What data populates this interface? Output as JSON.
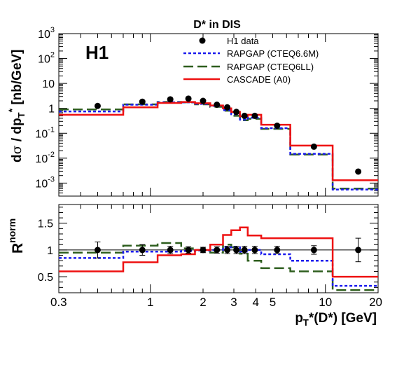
{
  "chart_data": [
    {
      "type": "histogram",
      "title": "D* in DIS",
      "experiment_label": "H1",
      "xscale": "log",
      "xlim": [
        0.3,
        20
      ],
      "yscale": "log",
      "ylim": [
        0.0003,
        1000
      ],
      "ylabel": {
        "prefix": "d",
        "sigma": "σ",
        "mid": " / dp",
        "sub": "T",
        "sup": "*",
        "unit": " [nb/GeV]"
      },
      "y_ticks": [
        {
          "value": 0.001,
          "base": "10",
          "exp": "-3"
        },
        {
          "value": 0.01,
          "base": "10",
          "exp": "-2"
        },
        {
          "value": 0.1,
          "base": "10",
          "exp": "-1"
        },
        {
          "value": 1,
          "base": "1",
          "exp": ""
        },
        {
          "value": 10,
          "base": "10",
          "exp": ""
        },
        {
          "value": 100,
          "base": "10",
          "exp": "2"
        },
        {
          "value": 1000,
          "base": "10",
          "exp": "3"
        }
      ],
      "legend": {
        "placement": "top-right",
        "entries": [
          {
            "label": "H1 data",
            "style": "marker",
            "color": "#000000"
          },
          {
            "label": "RAPGAP (CTEQ6.6M)",
            "style": "dotted",
            "color": "#1a1aee"
          },
          {
            "label": "RAPGAP (CTEQ6LL)",
            "style": "dashed",
            "color": "#2e5e1e"
          },
          {
            "label": "CASCADE (A0)",
            "style": "solid",
            "color": "#ee1111"
          }
        ]
      },
      "bin_edges": [
        0.3,
        0.7,
        1.1,
        1.5,
        1.8,
        2.2,
        2.6,
        2.9,
        3.25,
        3.6,
        4.3,
        6.3,
        11,
        20
      ],
      "data_points": [
        {
          "x": 0.5,
          "y": 1.25
        },
        {
          "x": 0.9,
          "y": 1.85
        },
        {
          "x": 1.3,
          "y": 2.3
        },
        {
          "x": 1.65,
          "y": 2.45
        },
        {
          "x": 2.0,
          "y": 2.0
        },
        {
          "x": 2.4,
          "y": 1.4
        },
        {
          "x": 2.75,
          "y": 1.1
        },
        {
          "x": 3.1,
          "y": 0.72
        },
        {
          "x": 3.45,
          "y": 0.5
        },
        {
          "x": 3.95,
          "y": 0.5
        },
        {
          "x": 5.3,
          "y": 0.2
        },
        {
          "x": 8.6,
          "y": 0.029
        },
        {
          "x": 15.4,
          "y": 0.0029
        }
      ],
      "series": [
        {
          "name": "RAPGAP (CTEQ6.6M)",
          "values": [
            0.75,
            1.4,
            1.75,
            1.75,
            1.5,
            1.25,
            0.85,
            0.58,
            0.35,
            0.42,
            0.16,
            0.015,
            0.00055
          ]
        },
        {
          "name": "RAPGAP (CTEQ6LL)",
          "values": [
            0.9,
            1.45,
            1.8,
            1.75,
            1.45,
            1.15,
            0.8,
            0.5,
            0.33,
            0.38,
            0.15,
            0.014,
            0.0006
          ]
        },
        {
          "name": "CASCADE (A0)",
          "values": [
            0.55,
            1.1,
            1.65,
            1.8,
            1.6,
            1.3,
            1.0,
            0.72,
            0.48,
            0.55,
            0.22,
            0.032,
            0.0013
          ]
        }
      ]
    },
    {
      "type": "histogram",
      "ylabel": {
        "base": "R",
        "sup": "norm"
      },
      "xlabel": {
        "p": "p",
        "sub": "T",
        "rest": "*(D*) [GeV]"
      },
      "xscale": "log",
      "xlim": [
        0.3,
        20
      ],
      "ylim": [
        0.2,
        1.85
      ],
      "x_ticks": [
        {
          "value": 0.3,
          "label": "0.3"
        },
        {
          "value": 1,
          "label": "1"
        },
        {
          "value": 2,
          "label": "2"
        },
        {
          "value": 3,
          "label": "3"
        },
        {
          "value": 4,
          "label": "4"
        },
        {
          "value": 5,
          "label": "5"
        },
        {
          "value": 10,
          "label": "10"
        },
        {
          "value": 20,
          "label": "20"
        }
      ],
      "y_ticks": [
        {
          "value": 0.5,
          "label": "0.5"
        },
        {
          "value": 1,
          "label": "1"
        },
        {
          "value": 1.5,
          "label": "1.5"
        }
      ],
      "reference_line": 1,
      "bin_edges": [
        0.3,
        0.7,
        1.1,
        1.5,
        1.8,
        2.2,
        2.6,
        2.9,
        3.25,
        3.6,
        4.3,
        6.3,
        11,
        20
      ],
      "data_points": [
        {
          "x": 0.5,
          "y": 1.0,
          "err": 0.15
        },
        {
          "x": 0.9,
          "y": 1.0,
          "err": 0.1
        },
        {
          "x": 1.3,
          "y": 1.0,
          "err": 0.07
        },
        {
          "x": 1.65,
          "y": 1.0,
          "err": 0.06
        },
        {
          "x": 2.0,
          "y": 1.0,
          "err": 0.05
        },
        {
          "x": 2.4,
          "y": 1.0,
          "err": 0.06
        },
        {
          "x": 2.75,
          "y": 1.0,
          "err": 0.07
        },
        {
          "x": 3.1,
          "y": 1.0,
          "err": 0.07
        },
        {
          "x": 3.45,
          "y": 1.0,
          "err": 0.07
        },
        {
          "x": 3.95,
          "y": 1.0,
          "err": 0.07
        },
        {
          "x": 5.3,
          "y": 1.0,
          "err": 0.07
        },
        {
          "x": 8.6,
          "y": 1.0,
          "err": 0.08
        },
        {
          "x": 15.4,
          "y": 1.0,
          "err": 0.22
        }
      ],
      "series": [
        {
          "name": "RAPGAP (CTEQ6.6M)",
          "values": [
            0.85,
            0.97,
            0.97,
            0.98,
            0.99,
            1.0,
            1.05,
            1.05,
            0.97,
            1.0,
            0.92,
            0.8,
            0.33
          ]
        },
        {
          "name": "RAPGAP (CTEQ6LL)",
          "values": [
            0.95,
            1.08,
            1.13,
            1.03,
            1.0,
            0.95,
            1.1,
            1.05,
            0.93,
            0.8,
            0.66,
            0.6,
            0.25
          ]
        },
        {
          "name": "CASCADE (A0)",
          "values": [
            0.6,
            0.77,
            0.9,
            0.92,
            1.0,
            1.1,
            1.28,
            1.37,
            1.42,
            1.27,
            1.22,
            1.22,
            0.5
          ]
        }
      ]
    }
  ]
}
